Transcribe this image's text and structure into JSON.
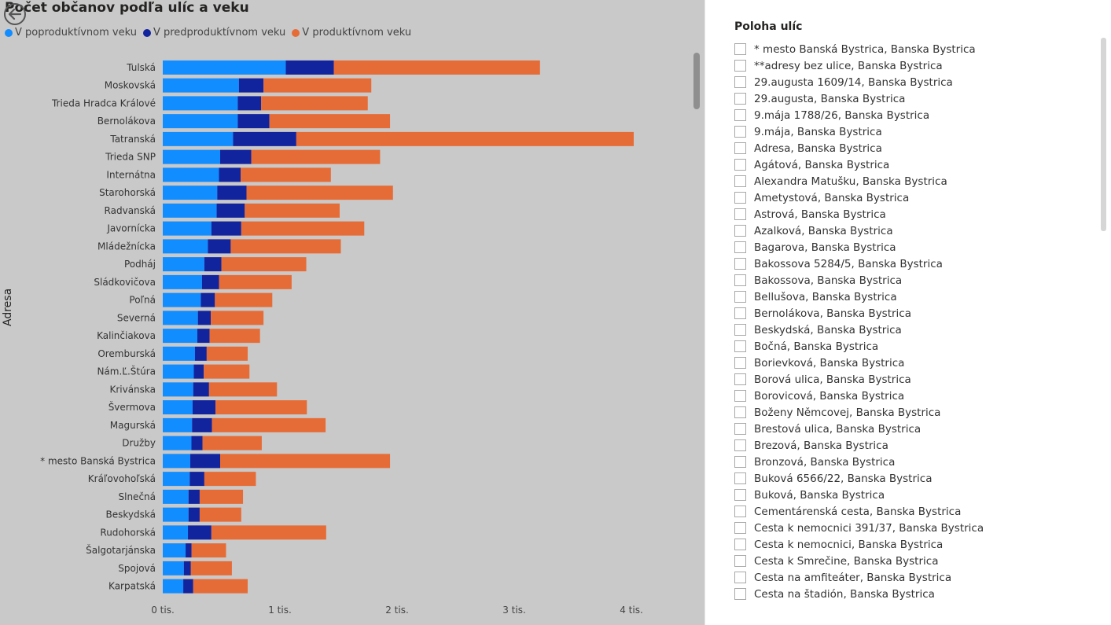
{
  "chart_title": "Počet občanov podľa ulíc a veku",
  "legend": [
    {
      "label": "V poproduktívnom veku",
      "color": "#118DFF"
    },
    {
      "label": "V predproduktívnom veku",
      "color": "#12239E"
    },
    {
      "label": "V produktívnom veku",
      "color": "#E66C37"
    }
  ],
  "y_axis_title": "Adresa",
  "icons": {
    "back": "back-arrow-icon"
  },
  "chart_data": {
    "type": "bar",
    "orientation": "horizontal",
    "stacked": true,
    "title": "Počet občanov podľa ulíc a veku",
    "ylabel": "Adresa",
    "xlabel": "",
    "xlim": [
      0,
      4500
    ],
    "x_ticks": [
      0,
      1000,
      2000,
      3000,
      4000
    ],
    "x_tick_labels": [
      "0 tis.",
      "1 tis.",
      "2 tis.",
      "3 tis.",
      "4 tis."
    ],
    "grid": false,
    "legend_position": "top-left",
    "categories": [
      "Tulská",
      "Moskovská",
      "Trieda Hradca Králové",
      "Bernolákova",
      "Tatranská",
      "Trieda SNP",
      "Internátna",
      "Starohorská",
      "Radvanská",
      "Javornícka",
      "Mládežnícka",
      "Podháj",
      "Sládkovičova",
      "Poľná",
      "Severná",
      "Kalinčiakova",
      "Oremburská",
      "Nám.Ľ.Štúra",
      "Krivánska",
      "Švermova",
      "Magurská",
      "Družby",
      "* mesto Banská Bystrica",
      "Kráľovohoľská",
      "Slnečná",
      "Beskydská",
      "Rudohorská",
      "Šalgotarjánska",
      "Spojová",
      "Karpatská"
    ],
    "series": [
      {
        "name": "V poproduktívnom veku",
        "color": "#118DFF",
        "values": [
          1050,
          650,
          640,
          640,
          600,
          490,
          480,
          465,
          460,
          415,
          385,
          355,
          335,
          325,
          300,
          295,
          275,
          265,
          260,
          255,
          250,
          245,
          235,
          230,
          220,
          220,
          215,
          195,
          180,
          175
        ]
      },
      {
        "name": "V predproduktívnom veku",
        "color": "#12239E",
        "values": [
          410,
          210,
          200,
          270,
          540,
          265,
          185,
          250,
          240,
          255,
          195,
          145,
          145,
          120,
          110,
          105,
          100,
          85,
          135,
          195,
          170,
          95,
          255,
          125,
          95,
          95,
          200,
          50,
          60,
          85
        ]
      },
      {
        "name": "V produktívnom veku",
        "color": "#E66C37",
        "values": [
          1760,
          920,
          910,
          1030,
          2880,
          1100,
          770,
          1250,
          810,
          1050,
          940,
          725,
          620,
          490,
          450,
          430,
          350,
          390,
          580,
          780,
          970,
          505,
          1450,
          440,
          370,
          355,
          980,
          295,
          350,
          465
        ]
      }
    ]
  },
  "slicer": {
    "title": "Poloha ulíc",
    "items": [
      "* mesto Banská Bystrica, Banska Bystrica",
      "**adresy bez ulice, Banska Bystrica",
      "29.augusta 1609/14, Banska Bystrica",
      "29.augusta, Banska Bystrica",
      "9.mája 1788/26, Banska Bystrica",
      "9.mája, Banska Bystrica",
      "Adresa, Banska Bystrica",
      "Agátová, Banska Bystrica",
      "Alexandra Matušku, Banska Bystrica",
      "Ametystová, Banska Bystrica",
      "Astrová, Banska Bystrica",
      "Azalková, Banska Bystrica",
      "Bagarova, Banska Bystrica",
      "Bakossova 5284/5, Banska Bystrica",
      "Bakossova, Banska Bystrica",
      "Bellušova, Banska Bystrica",
      "Bernolákova, Banska Bystrica",
      "Beskydská, Banska Bystrica",
      "Bočná, Banska Bystrica",
      "Borievková, Banska Bystrica",
      "Borová ulica, Banska Bystrica",
      "Borovicová, Banska Bystrica",
      "Boženy Němcovej, Banska Bystrica",
      "Brestová ulica, Banska Bystrica",
      "Brezová, Banska Bystrica",
      "Bronzová, Banska Bystrica",
      "Buková 6566/22, Banska Bystrica",
      "Buková, Banska Bystrica",
      "Cementárenská cesta, Banska Bystrica",
      "Cesta k nemocnici 391/37, Banska Bystrica",
      "Cesta k nemocnici, Banska Bystrica",
      "Cesta k Smrečine, Banska Bystrica",
      "Cesta na amfiteáter, Banska Bystrica",
      "Cesta na štadión, Banska Bystrica"
    ]
  }
}
